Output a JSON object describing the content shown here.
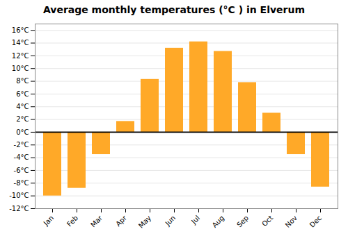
{
  "chart_data": {
    "type": "bar",
    "title": "Average monthly temperatures (°C ) in Elverum",
    "categories": [
      "Jan",
      "Feb",
      "Mar",
      "Apr",
      "May",
      "Jun",
      "Jul",
      "Aug",
      "Sep",
      "Oct",
      "Nov",
      "Dec"
    ],
    "values": [
      -10.0,
      -8.8,
      -3.5,
      1.7,
      8.3,
      13.2,
      14.2,
      12.7,
      7.8,
      3.0,
      -3.5,
      -8.6
    ],
    "color": "#FFA928",
    "ylim": [
      -12,
      17
    ],
    "yticks": [
      {
        "value": -12,
        "label": "-12°C"
      },
      {
        "value": -10,
        "label": "-10°C"
      },
      {
        "value": -8,
        "label": "-8°C"
      },
      {
        "value": -6,
        "label": "-6°C"
      },
      {
        "value": -4,
        "label": "-4°C"
      },
      {
        "value": -2,
        "label": "-2°C"
      },
      {
        "value": 0,
        "label": "0°C"
      },
      {
        "value": 2,
        "label": "2°C"
      },
      {
        "value": 4,
        "label": "4°C"
      },
      {
        "value": 6,
        "label": "6°C"
      },
      {
        "value": 8,
        "label": "8°C"
      },
      {
        "value": 10,
        "label": "10°C"
      },
      {
        "value": 12,
        "label": "12°C"
      },
      {
        "value": 14,
        "label": "14°C"
      },
      {
        "value": 16,
        "label": "16°C"
      }
    ],
    "grid": true
  }
}
